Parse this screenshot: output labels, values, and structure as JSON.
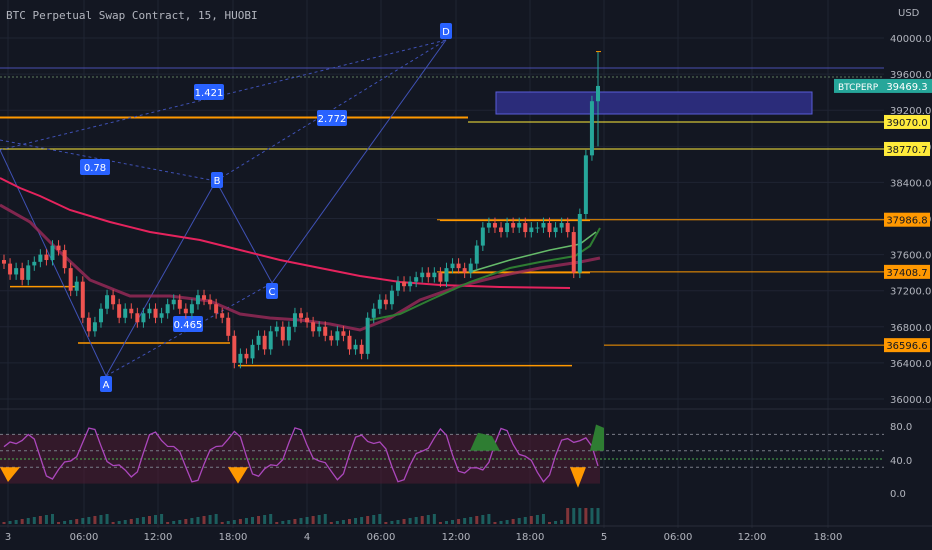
{
  "header": {
    "symbol_title": "BTC Perpetual Swap Contract, 15, HUOBI",
    "currency": "USD"
  },
  "colors": {
    "background": "#131722",
    "grid": "#1f2433",
    "candle_up": "#26a69a",
    "candle_down": "#ef5350",
    "ema_red": "#e5235d",
    "ema_pink": "#9c2a5a",
    "ma_green": "#2e7d32",
    "ma_green_light": "#66bb6a",
    "level_orange": "#ff9800",
    "level_yellow": "#ffeb3b",
    "pattern_line": "#3f51b5",
    "pattern_label_bg": "#2962ff",
    "zone_fill": "#2b2c7a",
    "rsi_line": "#ab47bc",
    "rsi_band": "#4a1a30",
    "price_tag": "#26a69a"
  },
  "chart_data": {
    "type": "candlestick",
    "symbol": "BTCPERP",
    "interval": "15",
    "exchange": "HUOBI",
    "ylim": [
      35900,
      40200
    ],
    "price_ticks": [
      40000,
      39600,
      39200,
      38800,
      38400,
      38000,
      37600,
      37200,
      36800,
      36400,
      36000
    ],
    "price_tick_labels": [
      "40000.0",
      "39600.0",
      "39200.0",
      "38800.0",
      "38400.0",
      "38000.0",
      "37600.0",
      "37200.0",
      "36800.0",
      "36400.0",
      "36000.0"
    ],
    "time_labels": [
      "3",
      "06:00",
      "12:00",
      "18:00",
      "4",
      "06:00",
      "12:00",
      "18:00",
      "5",
      "06:00",
      "12:00",
      "18:00"
    ],
    "last_price": {
      "label": "BTCPERP",
      "value": "39469.3",
      "price": 39469.3
    },
    "price_levels": [
      {
        "value": "39070.0",
        "price": 39070.0,
        "color": "yellow"
      },
      {
        "value": "38770.7",
        "price": 38770.7,
        "color": "yellow"
      },
      {
        "value": "37986.8",
        "price": 37986.8,
        "color": "orange"
      },
      {
        "value": "37408.7",
        "price": 37408.7,
        "color": "orange"
      },
      {
        "value": "36596.6",
        "price": 36596.6,
        "color": "orange"
      }
    ],
    "harmonic_points": [
      {
        "label": "A",
        "price": 36330
      },
      {
        "label": "B",
        "price": 38340
      },
      {
        "label": "C",
        "price": 37280
      },
      {
        "label": "D",
        "price": 39950
      }
    ],
    "fib_ratios": [
      "1.421",
      "2.772",
      "0.78",
      "0.465"
    ],
    "rsi_ticks": [
      "80.0",
      "40.0",
      "0.0"
    ],
    "series": [
      {
        "name": "close",
        "values": [
          37500,
          37380,
          37450,
          37320,
          37480,
          37520,
          37600,
          37540,
          37700,
          37650,
          37450,
          37200,
          37300,
          36900,
          36750,
          36850,
          37000,
          37150,
          37050,
          36900,
          37000,
          36950,
          36850,
          36950,
          37000,
          36900,
          36950,
          37050,
          37100,
          37000,
          36950,
          37050,
          37150,
          37100,
          37050,
          36950,
          36900,
          36700,
          36400,
          36500,
          36450,
          36600,
          36700,
          36550,
          36750,
          36800,
          36650,
          36800,
          36950,
          36900,
          36850,
          36750,
          36800,
          36700,
          36650,
          36750,
          36700,
          36550,
          36600,
          36500,
          36900,
          37000,
          37100,
          37050,
          37200,
          37300,
          37250,
          37300,
          37350,
          37400,
          37350,
          37400,
          37300,
          37450,
          37500,
          37450,
          37400,
          37500,
          37700,
          37900,
          37950,
          37900,
          37850,
          37950,
          37900,
          37950,
          37850,
          37900,
          37900,
          37950,
          37850,
          37900,
          37950,
          37850,
          37400,
          38050,
          38700,
          39300,
          39469
        ]
      }
    ]
  }
}
